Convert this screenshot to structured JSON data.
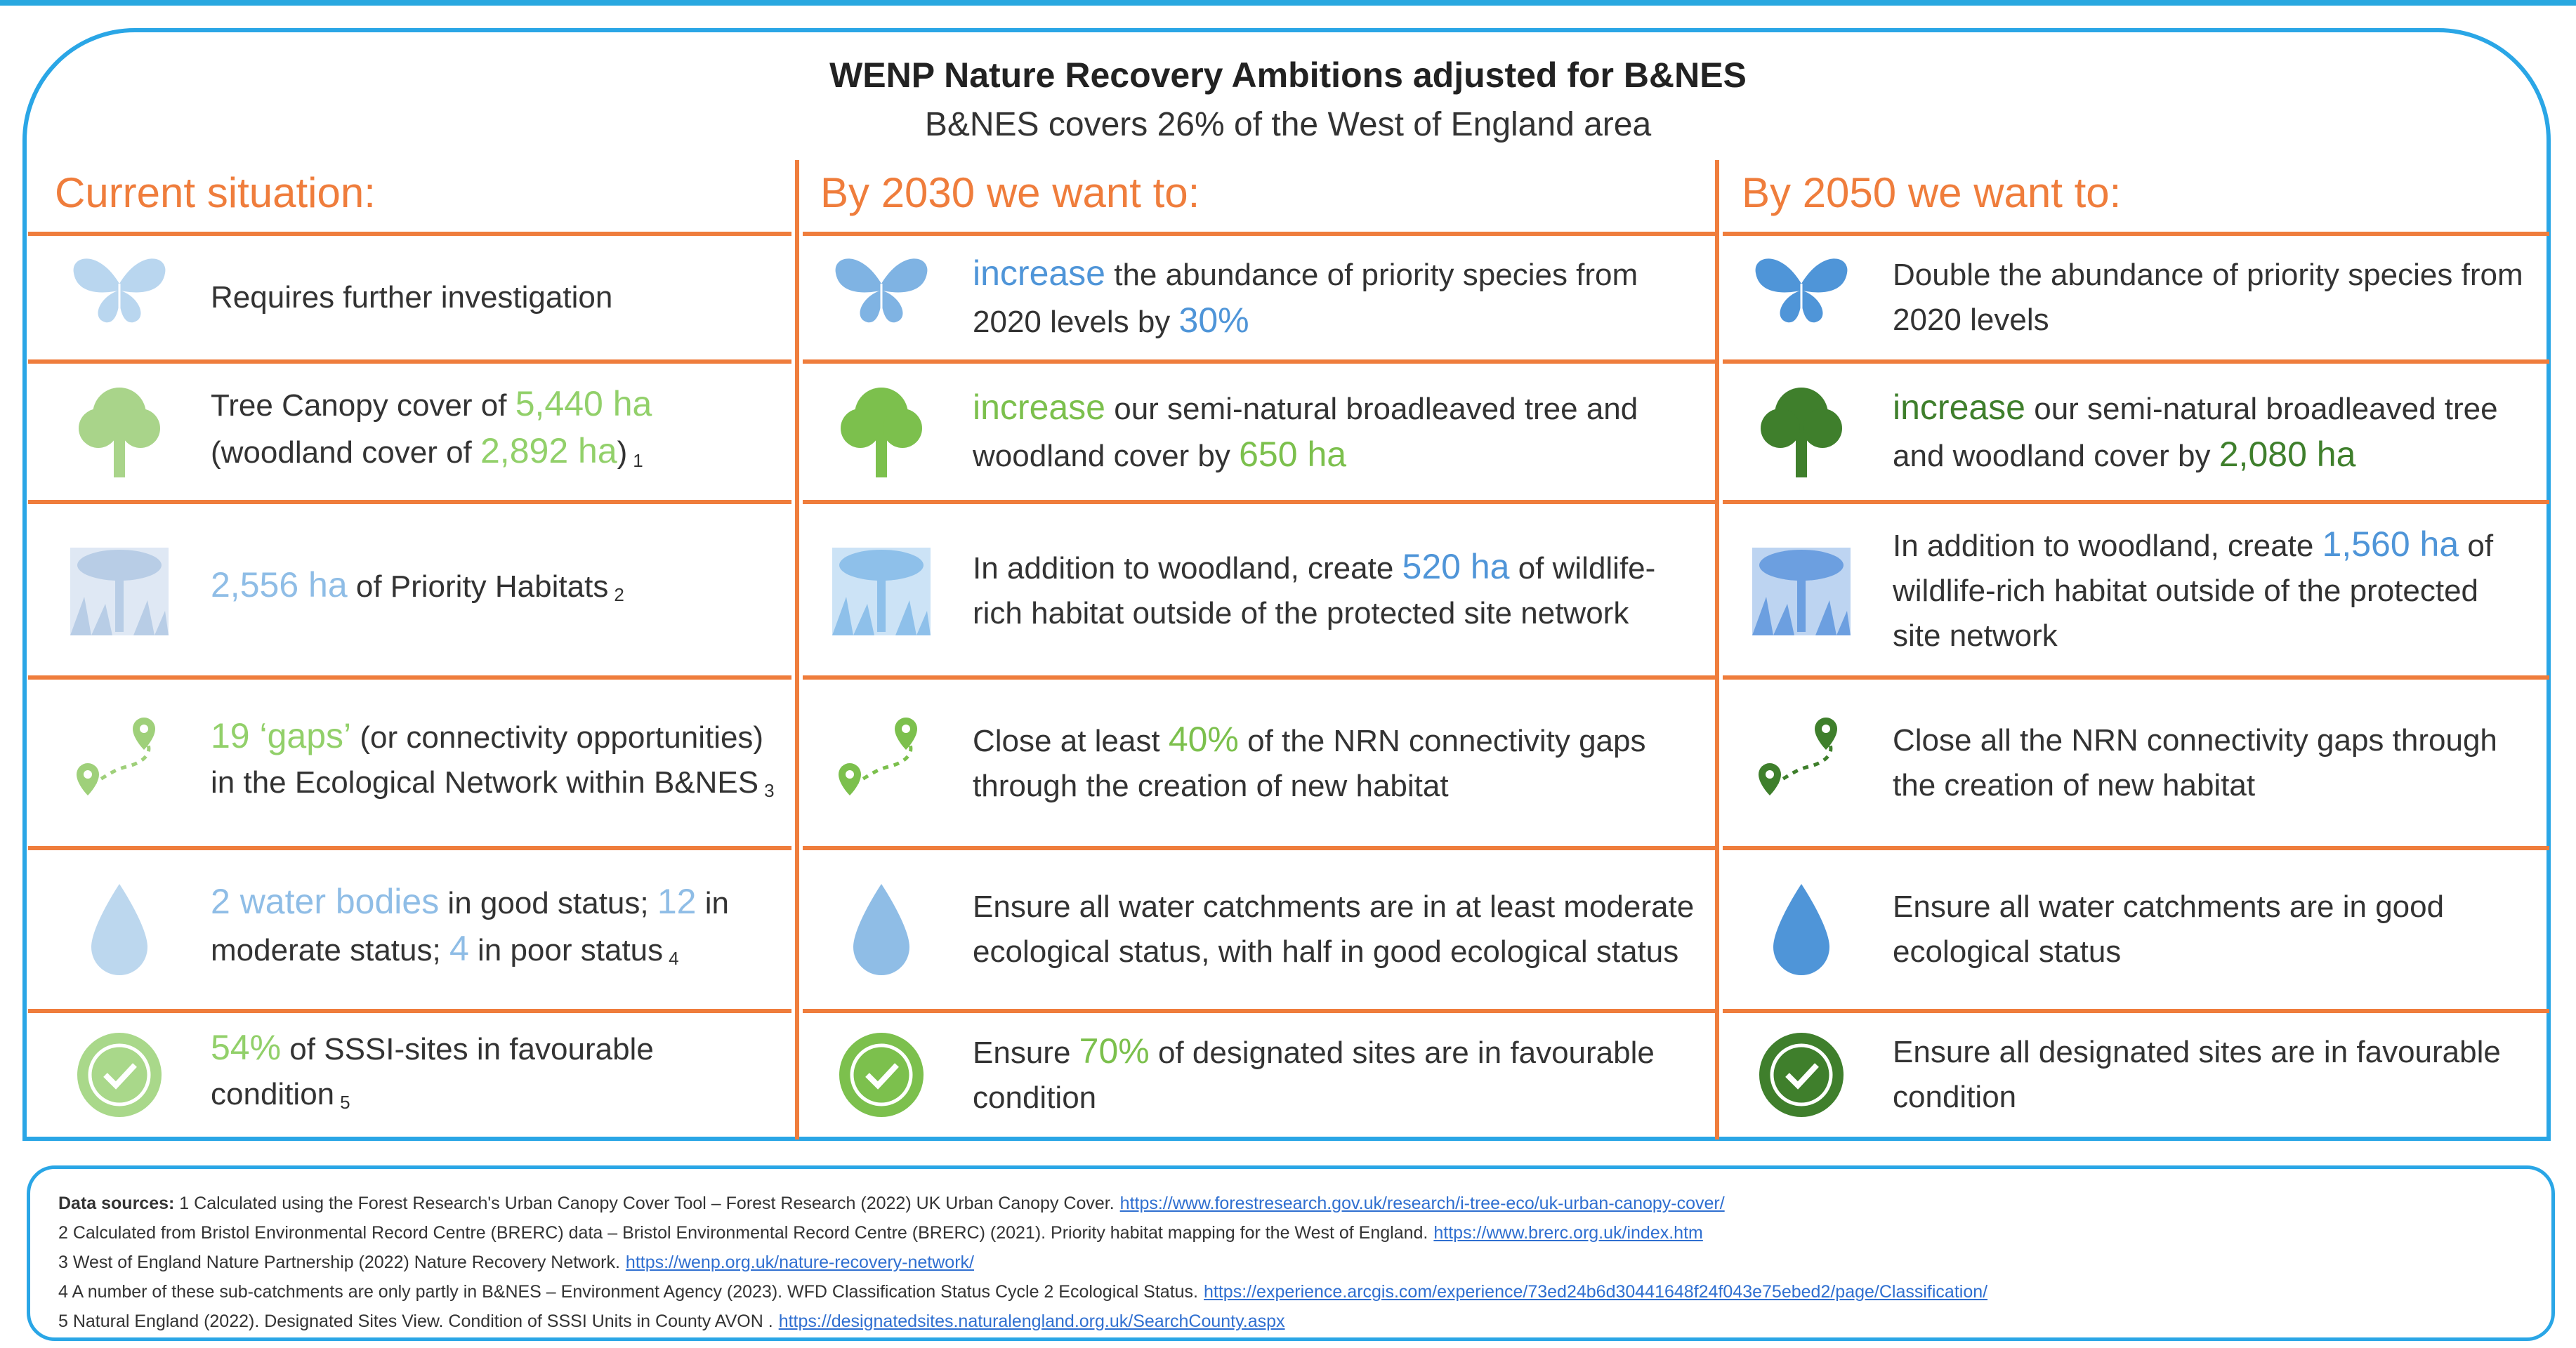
{
  "title": "WENP Nature Recovery Ambitions adjusted for B&NES",
  "subtitle": "B&NES covers 26% of the West of England area",
  "columns": [
    "Current situation:",
    "By 2030 we want to:",
    "By 2050 we want to:"
  ],
  "colors": {
    "orange": "#ef7d3c",
    "frame": "#2aa6e6",
    "blue_light": "#8fbde6",
    "blue": "#4f95d8",
    "green_light": "#92d06a",
    "green": "#7cc04d",
    "green_dark": "#3f7f2c"
  },
  "rows": [
    {
      "icon": "butterfly",
      "cells": [
        [
          {
            "t": "Requires further investigation"
          }
        ],
        [
          {
            "t": "increase",
            "c": "blue",
            "h": 1
          },
          {
            "t": " the abundance of priority species from 2020 levels by "
          },
          {
            "t": "30%",
            "c": "blue",
            "h": 1
          }
        ],
        [
          {
            "t": "Double the abundance of priority species from 2020 levels"
          }
        ]
      ]
    },
    {
      "icon": "tree",
      "cells": [
        [
          {
            "t": "Tree Canopy cover of "
          },
          {
            "t": "5,440 ha",
            "c": "green_light",
            "h": 1
          },
          {
            "t": " (woodland cover of "
          },
          {
            "t": "2,892 ha",
            "c": "green_light",
            "h": 1
          },
          {
            "t": ")"
          },
          {
            "t": "1",
            "s": 1
          }
        ],
        [
          {
            "t": "increase",
            "c": "green",
            "h": 1
          },
          {
            "t": " our semi-natural broadleaved tree and woodland cover by "
          },
          {
            "t": "650 ha",
            "c": "green",
            "h": 1
          }
        ],
        [
          {
            "t": "increase",
            "c": "green_dark",
            "h": 1
          },
          {
            "t": " our semi-natural broadleaved tree and woodland cover by "
          },
          {
            "t": "2,080 ha",
            "c": "green_dark",
            "h": 1
          }
        ]
      ]
    },
    {
      "icon": "habitat",
      "cells": [
        [
          {
            "t": "2,556 ha",
            "c": "blue_light",
            "h": 1
          },
          {
            "t": " of Priority Habitats"
          },
          {
            "t": "2",
            "s": 1
          }
        ],
        [
          {
            "t": "In addition to woodland, create "
          },
          {
            "t": "520 ha",
            "c": "blue",
            "h": 1
          },
          {
            "t": " of wildlife-rich habitat outside of the protected site network"
          }
        ],
        [
          {
            "t": "In addition to woodland, create "
          },
          {
            "t": "1,560 ha",
            "c": "blue",
            "h": 1
          },
          {
            "t": " of wildlife-rich habitat outside of the protected site network"
          }
        ]
      ]
    },
    {
      "icon": "path",
      "cells": [
        [
          {
            "t": "19 ‘gaps’",
            "c": "green_light",
            "h": 1
          },
          {
            "t": " (or connectivity opportunities) in the Ecological Network within B&NES"
          },
          {
            "t": "3",
            "s": 1
          }
        ],
        [
          {
            "t": "Close at least "
          },
          {
            "t": "40%",
            "c": "green",
            "h": 1
          },
          {
            "t": " of the NRN connectivity gaps through the creation of new habitat"
          }
        ],
        [
          {
            "t": "Close all the NRN connectivity gaps through the creation of new habitat"
          }
        ]
      ]
    },
    {
      "icon": "water-drop",
      "cells": [
        [
          {
            "t": "2 water bodies",
            "c": "blue_light",
            "h": 1
          },
          {
            "t": " in good status; "
          },
          {
            "t": "12",
            "c": "blue_light",
            "h": 1
          },
          {
            "t": " in moderate status; "
          },
          {
            "t": "4",
            "c": "blue_light",
            "h": 1
          },
          {
            "t": " in poor status"
          },
          {
            "t": "4",
            "s": 1
          }
        ],
        [
          {
            "t": "Ensure all water catchments are in at least moderate ecological status, with half in good ecological status"
          }
        ],
        [
          {
            "t": "Ensure all water catchments are in good ecological status"
          }
        ]
      ]
    },
    {
      "icon": "check-badge",
      "cells": [
        [
          {
            "t": "54%",
            "c": "green_light",
            "h": 1
          },
          {
            "t": " of SSSI-sites in favourable condition"
          },
          {
            "t": "5",
            "s": 1
          }
        ],
        [
          {
            "t": "Ensure "
          },
          {
            "t": "70%",
            "c": "green",
            "h": 1
          },
          {
            "t": " of designated sites are in favourable condition"
          }
        ],
        [
          {
            "t": "Ensure all designated sites are in favourable condition"
          }
        ]
      ]
    }
  ],
  "sources": {
    "label": "Data sources:",
    "items": [
      {
        "text": " 1 Calculated using the Forest Research's Urban Canopy Cover Tool – Forest Research (2022) UK Urban Canopy Cover.",
        "link": "https://www.forestresearch.gov.uk/research/i-tree-eco/uk-urban-canopy-cover/"
      },
      {
        "text": "2 Calculated from Bristol Environmental Record Centre (BRERC) data – Bristol Environmental Record Centre (BRERC) (2021). Priority habitat mapping for the West of England.",
        "link": "https://www.brerc.org.uk/index.htm"
      },
      {
        "text": "3 West of England Nature Partnership (2022) Nature Recovery Network.",
        "link": "https://wenp.org.uk/nature-recovery-network/"
      },
      {
        "text": "4 A number of these sub-catchments are only partly in B&NES – Environment Agency (2023). WFD Classification Status Cycle 2 Ecological Status.",
        "link": "https://experience.arcgis.com/experience/73ed24b6d30441648f24f043e75ebed2/page/Classification/"
      },
      {
        "text": "5 Natural England (2022). Designated Sites View. Condition of SSSI Units in County AVON .",
        "link": "https://designatedsites.naturalengland.org.uk/SearchCounty.aspx"
      }
    ]
  }
}
